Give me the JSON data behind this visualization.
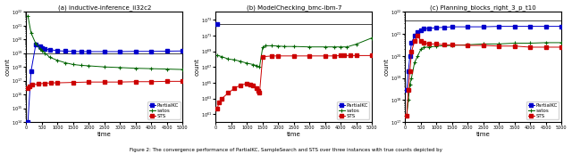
{
  "subplot_titles": [
    "(a) inductive-inference_ii32c2",
    "(b) ModelChecking_bmc-ibm-7",
    "(c) Planning_blocks_right_3_p_t10"
  ],
  "caption": "Figure 2: The convergence performance of PartialKC, SampleSearch and STS over three instances with true counts depicted by",
  "colors": {
    "PartialKC": "#0000cc",
    "satos": "#006400",
    "STS": "#cc0000",
    "true_count": "#444444"
  },
  "plot1": {
    "true_count": 1e+19,
    "xlim": [
      0,
      5000
    ],
    "xticks": [
      0,
      500,
      1000,
      1500,
      2000,
      2500,
      3000,
      3500,
      4000,
      4500,
      5000
    ],
    "PartialKC_x": [
      50,
      150,
      300,
      450,
      500,
      600,
      750,
      1000,
      1250,
      1500,
      1750,
      2000,
      2500,
      3000,
      3500,
      4000,
      4500,
      5000
    ],
    "PartialKC_y": [
      100000000000000.0,
      5e+17,
      4e+19,
      3e+19,
      2.5e+19,
      2e+19,
      1.8e+19,
      1.5e+19,
      1.4e+19,
      1.35e+19,
      1.3e+19,
      1.3e+19,
      1.3e+19,
      1.3e+19,
      1.35e+19,
      1.35e+19,
      1.4e+19,
      1.45e+19
    ],
    "satos_x": [
      50,
      150,
      300,
      450,
      500,
      600,
      750,
      1000,
      1250,
      1500,
      1750,
      2000,
      2500,
      3000,
      3500,
      4000,
      4500,
      5000
    ],
    "satos_y": [
      5e+21,
      3e+20,
      5e+19,
      2e+19,
      1.5e+19,
      1e+19,
      5e+18,
      3e+18,
      2e+18,
      1.5e+18,
      1.3e+18,
      1.2e+18,
      1e+18,
      9e+17,
      8e+17,
      7.5e+17,
      7e+17,
      6.5e+17
    ],
    "STS_x": [
      50,
      100,
      200,
      400,
      600,
      800,
      1000,
      1500,
      2000,
      2500,
      3000,
      3500,
      4000,
      4500,
      5000
    ],
    "STS_y": [
      3e+16,
      4e+16,
      5e+16,
      6e+16,
      6.5e+16,
      7e+16,
      7e+16,
      7.5e+16,
      8e+16,
      8e+16,
      8e+16,
      8.5e+16,
      8.5e+16,
      9e+16,
      9e+16
    ],
    "ylim_log": [
      100000000000000.0,
      1e+22
    ],
    "ylabel": "count"
  },
  "plot2": {
    "true_count": 3e+72,
    "xlim": [
      0,
      5000
    ],
    "xticks": [
      0,
      500,
      1000,
      1500,
      2000,
      2500,
      3000,
      3500,
      4000,
      4500,
      5000
    ],
    "PartialKC_x": [
      50
    ],
    "PartialKC_y": [
      3e+72
    ],
    "satos_x": [
      50,
      200,
      400,
      600,
      800,
      1000,
      1200,
      1300,
      1400,
      1500,
      1600,
      1800,
      2000,
      2200,
      2500,
      3000,
      3500,
      3800,
      4000,
      4200,
      4500,
      5000
    ],
    "satos_y": [
      3e+68,
      2e+68,
      1e+68,
      8e+67,
      5e+67,
      3e+67,
      2e+67,
      1.5e+67,
      1e+67,
      3e+69,
      5e+69,
      5e+69,
      4.5e+69,
      4e+69,
      4e+69,
      3.5e+69,
      3.5e+69,
      3.5e+69,
      3.5e+69,
      3.5e+69,
      8e+69,
      5e+70
    ],
    "STS_x": [
      50,
      100,
      200,
      400,
      600,
      800,
      1000,
      1100,
      1200,
      1300,
      1350,
      1400,
      1500,
      1800,
      2000,
      2500,
      3000,
      3500,
      3800,
      4000,
      4100,
      4300,
      4500,
      5000
    ],
    "STS_y": [
      5e+61,
      3e+62,
      1e+63,
      5e+63,
      2e+64,
      5e+64,
      8e+64,
      6e+64,
      4e+64,
      2e+64,
      1e+64,
      5e+63,
      2e+68,
      2.5e+68,
      2.5e+68,
      2.5e+68,
      2.5e+68,
      2.5e+68,
      2.5e+68,
      2.8e+68,
      2.8e+68,
      2.8e+68,
      2.8e+68,
      2.8e+68
    ],
    "ylim_log": [
      1e+60,
      1e+74
    ],
    "ylabel": "count"
  },
  "plot3": {
    "true_count": 4e+21,
    "xlim": [
      0,
      5000
    ],
    "xticks": [
      0,
      500,
      1000,
      1500,
      2000,
      2500,
      3000,
      3500,
      4000,
      4500,
      5000
    ],
    "PartialKC_x": [
      50,
      100,
      150,
      200,
      300,
      400,
      500,
      600,
      750,
      1000,
      1250,
      1500,
      2000,
      2500,
      3000,
      3500,
      4000,
      4500,
      5000
    ],
    "PartialKC_y": [
      3e+18,
      2e+19,
      1e+20,
      4e+20,
      8e+20,
      1.2e+21,
      1.5e+21,
      1.7e+21,
      1.8e+21,
      1.9e+21,
      2e+21,
      2.1e+21,
      2.1e+21,
      2.1e+21,
      2.2e+21,
      2.2e+21,
      2.2e+21,
      2.2e+21,
      2.2e+21
    ],
    "satos_x": [
      50,
      100,
      150,
      200,
      300,
      400,
      500,
      600,
      750,
      1000,
      1500,
      2000,
      2500,
      3000,
      3500,
      4000,
      4500,
      5000
    ],
    "satos_y": [
      2e+17,
      1e+18,
      5e+18,
      1e+19,
      5e+19,
      1e+20,
      2e+20,
      2.5e+20,
      2.5e+20,
      2.8e+20,
      3e+20,
      3.2e+20,
      3.5e+20,
      3.5e+20,
      3.8e+20,
      3.8e+20,
      4e+20,
      4e+20
    ],
    "STS_x": [
      50,
      100,
      150,
      200,
      300,
      400,
      500,
      600,
      750,
      1000,
      1250,
      1500,
      2000,
      2500,
      3000,
      3500,
      4000,
      4500,
      5000
    ],
    "STS_y": [
      2e+17,
      3e+18,
      2e+19,
      1.5e+20,
      5e+20,
      8e+20,
      5e+20,
      4e+20,
      3.5e+20,
      3.5e+20,
      3.2e+20,
      3.2e+20,
      3e+20,
      3e+20,
      2.8e+20,
      2.8e+20,
      2.5e+20,
      2.5e+20,
      2.5e+20
    ],
    "ylim_log": [
      1e+17,
      1e+22
    ],
    "ylabel": "count"
  }
}
